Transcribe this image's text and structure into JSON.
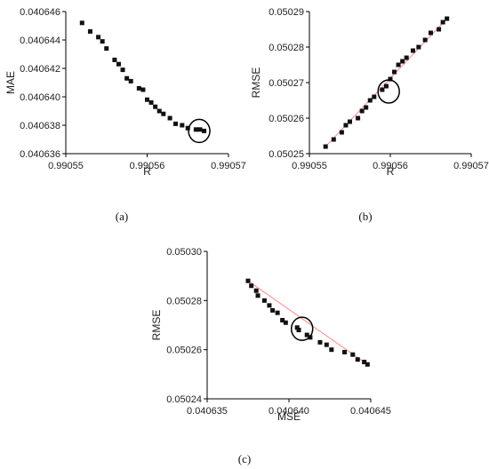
{
  "panel_labels": [
    "(a)",
    "(b)",
    "(c)"
  ],
  "chart_data": [
    {
      "type": "scatter",
      "title": "",
      "xlabel": "R",
      "ylabel": "MAE",
      "xlim": [
        0.99055,
        0.99057
      ],
      "ylim": [
        0.040636,
        0.040646
      ],
      "x_ticks": [
        "0.99055",
        "0.99056",
        "0.99057"
      ],
      "y_ticks": [
        "0.040636",
        "0.040638",
        "0.040640",
        "0.040642",
        "0.040644",
        "0.040646"
      ],
      "x": [
        0.990552,
        0.990553,
        0.990554,
        0.9905545,
        0.990555,
        0.990556,
        0.9905565,
        0.990557,
        0.9905575,
        0.990558,
        0.990559,
        0.9905595,
        0.99056,
        0.9905605,
        0.990561,
        0.9905615,
        0.990562,
        0.9905628,
        0.9905635,
        0.9905643,
        0.990565,
        0.990566,
        0.9905665,
        0.990567
      ],
      "y": [
        0.0406452,
        0.0406446,
        0.0406442,
        0.0406439,
        0.0406434,
        0.0406426,
        0.0406423,
        0.0406419,
        0.0406413,
        0.0406411,
        0.0406406,
        0.0406405,
        0.0406398,
        0.0406396,
        0.0406393,
        0.040639,
        0.0406388,
        0.0406385,
        0.0406381,
        0.040638,
        0.0406378,
        0.0406377,
        0.0406377,
        0.0406376
      ],
      "trend_line": false,
      "highlight_circle": {
        "x": 0.9905664,
        "y": 0.0406376
      }
    },
    {
      "type": "scatter",
      "title": "",
      "xlabel": "R",
      "ylabel": "RMSE",
      "xlim": [
        0.99055,
        0.99057
      ],
      "ylim": [
        0.05025,
        0.05029
      ],
      "x_ticks": [
        "0.99055",
        "0.99056",
        "0.99057"
      ],
      "y_ticks": [
        "0.05025",
        "0.05026",
        "0.05027",
        "0.05028",
        "0.05029"
      ],
      "x": [
        0.990552,
        0.990553,
        0.990554,
        0.9905545,
        0.990555,
        0.990556,
        0.9905565,
        0.990557,
        0.9905575,
        0.990558,
        0.990559,
        0.9905595,
        0.99056,
        0.9905605,
        0.990561,
        0.9905615,
        0.990562,
        0.9905628,
        0.9905635,
        0.9905643,
        0.990565,
        0.990566,
        0.9905665,
        0.990567
      ],
      "y": [
        0.050252,
        0.050254,
        0.050256,
        0.050258,
        0.050259,
        0.05026,
        0.050262,
        0.050263,
        0.050265,
        0.050266,
        0.050268,
        0.050269,
        0.050271,
        0.050273,
        0.050275,
        0.050276,
        0.050277,
        0.050279,
        0.05028,
        0.050282,
        0.050284,
        0.050285,
        0.050287,
        0.050288
      ],
      "trend_line": true,
      "trend_color": "#ff8a8a",
      "highlight_circle": {
        "x": 0.9905598,
        "y": 0.0502675
      }
    },
    {
      "type": "scatter",
      "title": "",
      "xlabel": "MSE",
      "ylabel": "RMSE",
      "xlim": [
        0.040635,
        0.040645
      ],
      "ylim": [
        0.05024,
        0.0503
      ],
      "x_ticks": [
        "0.040635",
        "0.040640",
        "0.040645"
      ],
      "y_ticks": [
        "0.05024",
        "0.05026",
        "0.05028",
        "0.05030"
      ],
      "x": [
        0.0406375,
        0.0406377,
        0.040638,
        0.0406381,
        0.0406385,
        0.0406388,
        0.040639,
        0.0406393,
        0.0406396,
        0.0406398,
        0.0406405,
        0.0406406,
        0.0406411,
        0.0406413,
        0.0406419,
        0.0406423,
        0.0406426,
        0.0406434,
        0.0406439,
        0.0406442,
        0.0406446,
        0.0406448
      ],
      "y": [
        0.050288,
        0.050286,
        0.050284,
        0.050282,
        0.05028,
        0.050278,
        0.050276,
        0.050275,
        0.050272,
        0.050271,
        0.050269,
        0.050268,
        0.050266,
        0.050265,
        0.050263,
        0.050262,
        0.05026,
        0.050259,
        0.050258,
        0.050256,
        0.050255,
        0.050254
      ],
      "trend_line": true,
      "trend_color": "#ff8a8a",
      "highlight_circle": {
        "x": 0.0406408,
        "y": 0.0502685
      }
    }
  ]
}
